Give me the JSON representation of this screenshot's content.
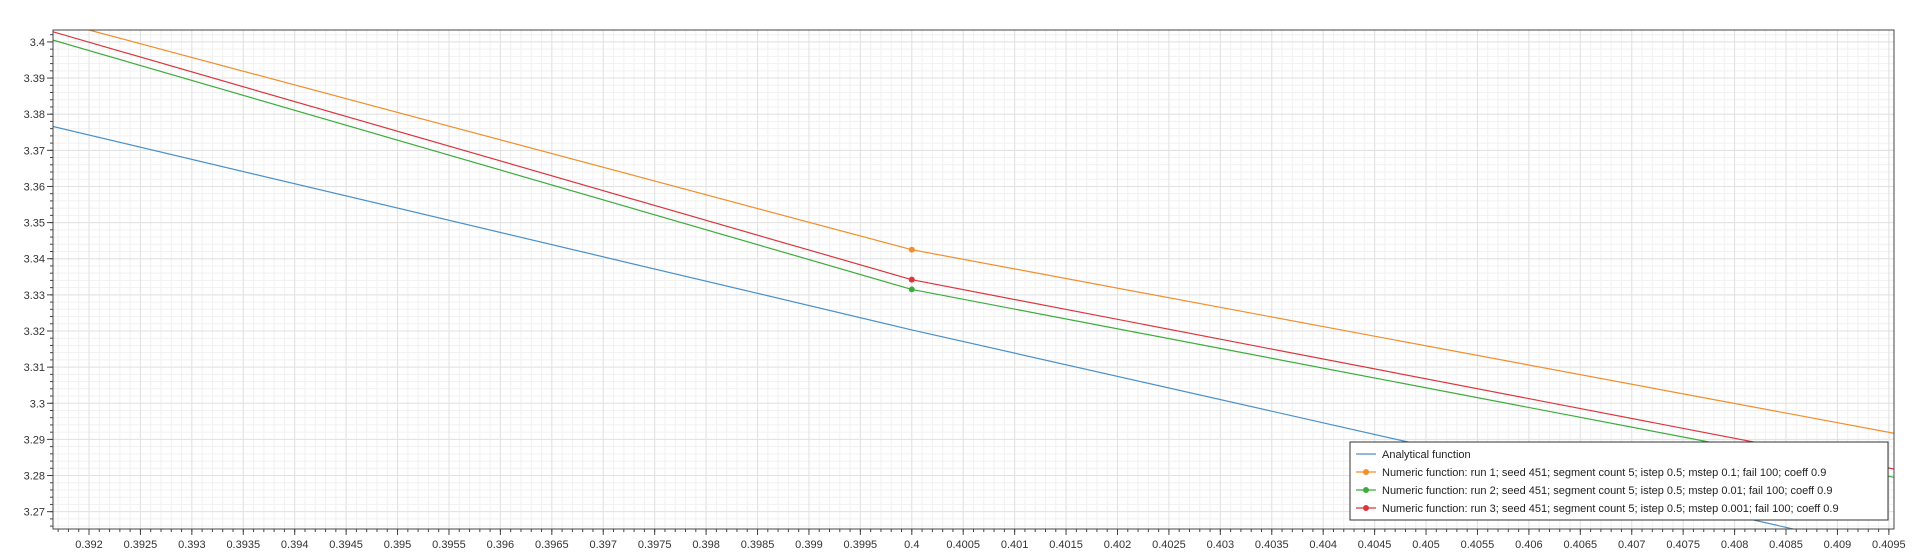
{
  "chart_data": {
    "type": "line",
    "title": "",
    "xlabel": "",
    "ylabel": "",
    "xlim": [
      0.39165,
      0.40955
    ],
    "ylim": [
      3.2652,
      3.4033
    ],
    "grid": true,
    "legend_position": "bottom-right",
    "x_ticks": [
      "0.392",
      "0.3925",
      "0.393",
      "0.3935",
      "0.394",
      "0.3945",
      "0.395",
      "0.3955",
      "0.396",
      "0.3965",
      "0.397",
      "0.3975",
      "0.398",
      "0.3985",
      "0.399",
      "0.3995",
      "0.4",
      "0.4005",
      "0.401",
      "0.4015",
      "0.402",
      "0.4025",
      "0.403",
      "0.4035",
      "0.404",
      "0.4045",
      "0.405",
      "0.4055",
      "0.406",
      "0.4065",
      "0.407",
      "0.4075",
      "0.408",
      "0.4085",
      "0.409",
      "0.4095"
    ],
    "y_ticks": [
      "3.27",
      "3.28",
      "3.29",
      "3.3",
      "3.31",
      "3.32",
      "3.33",
      "3.34",
      "3.35",
      "3.36",
      "3.37",
      "3.38",
      "3.39",
      "3.4"
    ],
    "series": [
      {
        "name": "Analytical function",
        "color": "#4a90c8",
        "marker": "none",
        "x": [
          0.39165,
          0.4,
          0.40955
        ],
        "y": [
          3.3766,
          3.3203,
          3.2589
        ]
      },
      {
        "name": "Numeric function: run 1; seed 451; segment count 5; istep 0.5; mstep 0.1; fail 100; coeff 0.9",
        "color": "#f28e2b",
        "marker": "circle",
        "marker_x": [
          0.4
        ],
        "x": [
          0.392,
          0.4,
          0.40955
        ],
        "y": [
          3.4033,
          3.3425,
          3.2917
        ]
      },
      {
        "name": "Numeric function: run 2; seed 451; segment count 5; istep 0.5; mstep 0.01; fail 100; coeff 0.9",
        "color": "#3cac3c",
        "marker": "circle",
        "marker_x": [
          0.4
        ],
        "x": [
          0.39165,
          0.4,
          0.40955
        ],
        "y": [
          3.4005,
          3.3315,
          3.2795
        ]
      },
      {
        "name": "Numeric function: run 3; seed 451; segment count 5; istep 0.5; mstep 0.001; fail 100; coeff 0.9",
        "color": "#d9363e",
        "marker": "circle",
        "marker_x": [
          0.4
        ],
        "x": [
          0.39165,
          0.4,
          0.40955
        ],
        "y": [
          3.4028,
          3.3342,
          3.2818
        ]
      }
    ]
  }
}
